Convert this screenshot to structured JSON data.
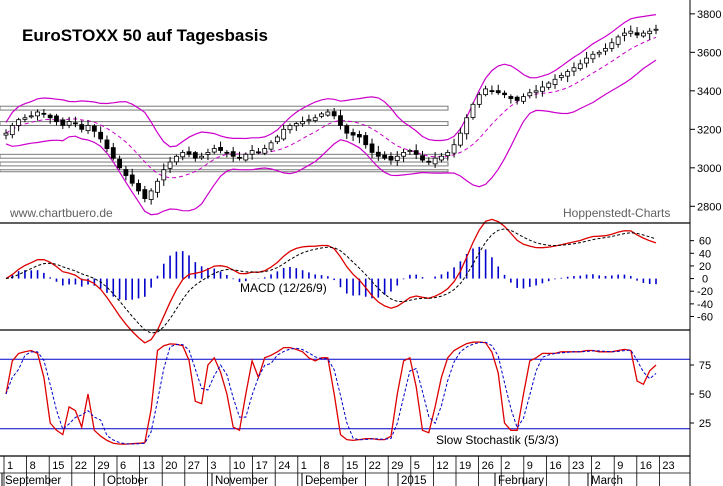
{
  "chart_data": [
    {
      "type": "candlestick",
      "title": "EuroSTOXX 50 auf Tagesbasis",
      "watermark_left": "www.chartbuero.de",
      "watermark_right": "Hoppenstedt-Charts",
      "ylim": [
        2760,
        3820
      ],
      "yticks": [
        2800,
        3000,
        3200,
        3400,
        3600,
        3800
      ],
      "resistance_zones": [
        [
          3220,
          3240
        ],
        [
          3300,
          3320
        ],
        [
          3050,
          3070
        ],
        [
          3010,
          3030
        ],
        [
          2980,
          2990
        ]
      ],
      "overlays": [
        "Bollinger Bands",
        "Moving Average"
      ],
      "price_path": [
        3180,
        3220,
        3250,
        3260,
        3270,
        3290,
        3280,
        3260,
        3240,
        3220,
        3240,
        3230,
        3200,
        3220,
        3190,
        3150,
        3100,
        3050,
        3000,
        2960,
        2920,
        2880,
        2840,
        2880,
        2930,
        2990,
        3030,
        3060,
        3080,
        3070,
        3050,
        3060,
        3080,
        3100,
        3090,
        3080,
        3060,
        3050,
        3070,
        3090,
        3080,
        3100,
        3130,
        3160,
        3200,
        3220,
        3230,
        3240,
        3250,
        3260,
        3280,
        3290,
        3270,
        3220,
        3180,
        3170,
        3160,
        3120,
        3080,
        3060,
        3050,
        3040,
        3060,
        3080,
        3090,
        3070,
        3040,
        3030,
        3050,
        3060,
        3080,
        3120,
        3180,
        3260,
        3330,
        3380,
        3410,
        3400,
        3390,
        3380,
        3360,
        3350,
        3370,
        3390,
        3400,
        3420,
        3440,
        3460,
        3480,
        3500,
        3520,
        3540,
        3570,
        3590,
        3600,
        3620,
        3650,
        3680,
        3700,
        3710,
        3690,
        3700,
        3710,
        3720
      ]
    },
    {
      "type": "line",
      "indicator": "MACD (12/26/9)",
      "ylim": [
        -75,
        80
      ],
      "yticks": [
        60,
        40,
        20,
        0,
        -20,
        -40,
        -60
      ],
      "ytick_labels": [
        "60",
        "40",
        "20",
        "0",
        "-20",
        "-40",
        "-60"
      ]
    },
    {
      "type": "line",
      "indicator": "Slow Stochastik (5/3/3)",
      "ylim": [
        0,
        100
      ],
      "yticks": [
        75,
        50,
        25
      ],
      "reference_lines": [
        80,
        20
      ]
    }
  ],
  "x_axis": {
    "day_labels": [
      "1",
      "8",
      "15",
      "22",
      "29",
      "6",
      "13",
      "20",
      "27",
      "3",
      "10",
      "17",
      "24",
      "1",
      "8",
      "15",
      "22",
      "29",
      "5",
      "12",
      "19",
      "26",
      "2",
      "9",
      "16",
      "23",
      "2",
      "9",
      "16",
      "23"
    ],
    "months": [
      "September",
      "October",
      "November",
      "December",
      "2015",
      "February",
      "March"
    ]
  },
  "colors": {
    "bollinger": "#cc00cc",
    "moving_average": "#cc00cc",
    "macd": "#dd0000",
    "signal": "#000000",
    "histogram": "#0000cc",
    "stoch_k": "#dd0000",
    "stoch_d": "#0000cc",
    "ref_line": "#0000cc"
  }
}
